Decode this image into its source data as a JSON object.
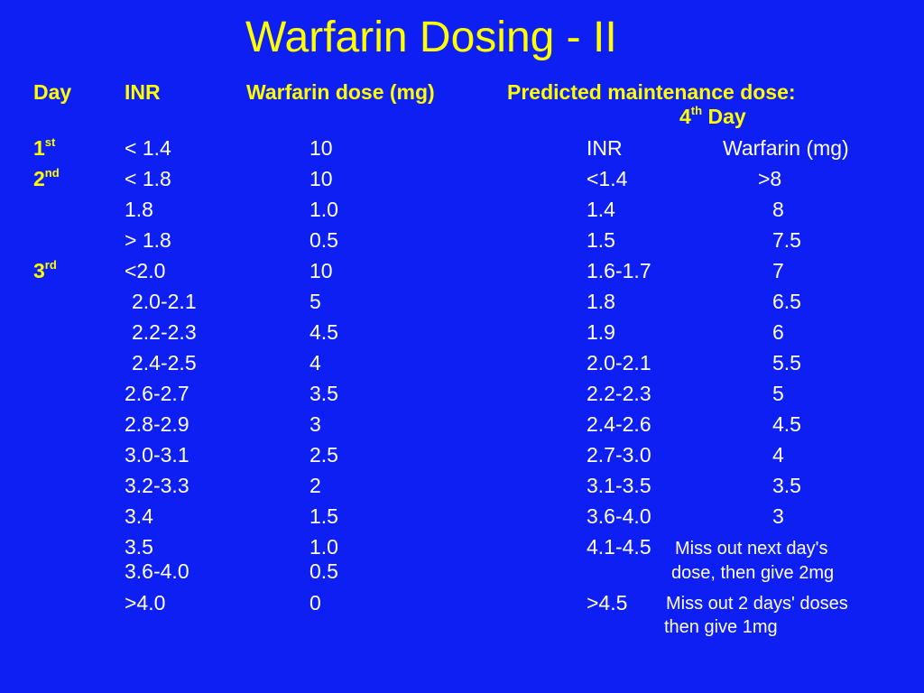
{
  "title": "Warfarin Dosing - II",
  "headers": {
    "day": "Day",
    "inr": "INR",
    "dose": "Warfarin dose (mg)",
    "predicted": "Predicted maintenance dose:",
    "predicted_day_num": "4",
    "predicted_day_sup": "th",
    "predicted_day_rest": " Day"
  },
  "days": [
    {
      "num": "1",
      "sup": "st"
    },
    {
      "num": "2",
      "sup": "nd"
    },
    {
      "num": "3",
      "sup": "rd"
    }
  ],
  "dose_rows": [
    {
      "inr": "< 1.4",
      "dose": "10"
    },
    {
      "inr": "< 1.8",
      "dose": "10"
    },
    {
      "inr": "1.8",
      "dose": "1.0"
    },
    {
      "inr": "> 1.8",
      "dose": "0.5"
    },
    {
      "inr": "<2.0",
      "dose": "10"
    },
    {
      "inr": "2.0-2.1",
      "dose": "5"
    },
    {
      "inr": "2.2-2.3",
      "dose": "4.5"
    },
    {
      "inr": "2.4-2.5",
      "dose": "4"
    },
    {
      "inr": "2.6-2.7",
      "dose": "3.5"
    },
    {
      "inr": "2.8-2.9",
      "dose": "3"
    },
    {
      "inr": "3.0-3.1",
      "dose": "2.5"
    },
    {
      "inr": "3.2-3.3",
      "dose": "2"
    },
    {
      "inr": "3.4",
      "dose": "1.5"
    },
    {
      "inr": "3.5",
      "dose": "1.0"
    },
    {
      "inr": "3.6-4.0",
      "dose": "0.5"
    },
    {
      "inr": ">4.0",
      "dose": "0"
    }
  ],
  "maintenance": {
    "inr_header": "INR",
    "dose_header": "Warfarin (mg)",
    "rows": [
      {
        "inr": "<1.4",
        "dose": ">8"
      },
      {
        "inr": "1.4",
        "dose": "8"
      },
      {
        "inr": "1.5",
        "dose": "7.5"
      },
      {
        "inr": "1.6-1.7",
        "dose": "7"
      },
      {
        "inr": "1.8",
        "dose": "6.5"
      },
      {
        "inr": "1.9",
        "dose": "6"
      },
      {
        "inr": "2.0-2.1",
        "dose": "5.5"
      },
      {
        "inr": "2.2-2.3",
        "dose": "5"
      },
      {
        "inr": "2.4-2.6",
        "dose": "4.5"
      },
      {
        "inr": "2.7-3.0",
        "dose": "4"
      },
      {
        "inr": "3.1-3.5",
        "dose": "3.5"
      },
      {
        "inr": "3.6-4.0",
        "dose": "3"
      }
    ],
    "note_rows": [
      {
        "inr": "4.1-4.5",
        "line1": "Miss out next day's",
        "line2": "dose, then give 2mg"
      },
      {
        "inr": ">4.5",
        "line1": "Miss out 2 days' doses",
        "line2": "then give 1mg"
      }
    ]
  },
  "colors": {
    "background": "#0d1ff2",
    "title": "#ffff00",
    "header": "#ffff00",
    "body_text": "#ffffff"
  }
}
